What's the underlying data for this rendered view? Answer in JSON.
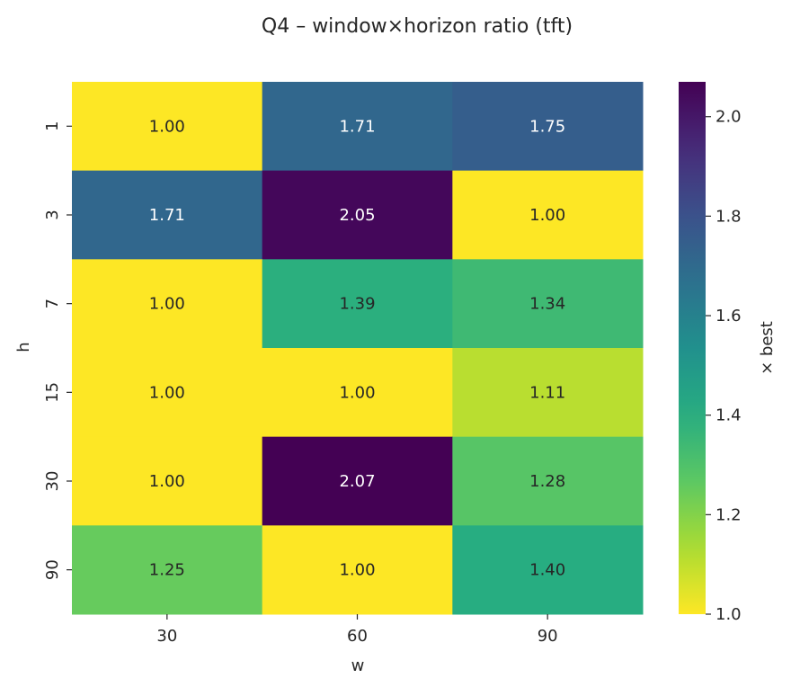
{
  "chart_data": {
    "type": "heatmap",
    "title": "Q4 – window×horizon ratio (tft)",
    "xlabel": "w",
    "ylabel": "h",
    "x_categories": [
      "30",
      "60",
      "90"
    ],
    "y_categories": [
      "1",
      "3",
      "7",
      "15",
      "30",
      "90"
    ],
    "values": [
      [
        1.0,
        1.71,
        1.75
      ],
      [
        1.71,
        2.05,
        1.0
      ],
      [
        1.0,
        1.39,
        1.34
      ],
      [
        1.0,
        1.0,
        1.11
      ],
      [
        1.0,
        2.07,
        1.28
      ],
      [
        1.25,
        1.0,
        1.4
      ]
    ],
    "value_labels": [
      [
        "1.00",
        "1.71",
        "1.75"
      ],
      [
        "1.71",
        "2.05",
        "1.00"
      ],
      [
        "1.00",
        "1.39",
        "1.34"
      ],
      [
        "1.00",
        "1.00",
        "1.11"
      ],
      [
        "1.00",
        "2.07",
        "1.28"
      ],
      [
        "1.25",
        "1.00",
        "1.40"
      ]
    ],
    "colorbar": {
      "label": "× best",
      "min": 1.0,
      "max": 2.07,
      "ticks": [
        1.0,
        1.2,
        1.4,
        1.6,
        1.8,
        2.0
      ],
      "tick_labels": [
        "1.0",
        "1.2",
        "1.4",
        "1.6",
        "1.8",
        "2.0"
      ],
      "colormap": "viridis_r"
    },
    "colors": {
      "dark_text": "#262626",
      "light_text": "#ffffff"
    }
  }
}
